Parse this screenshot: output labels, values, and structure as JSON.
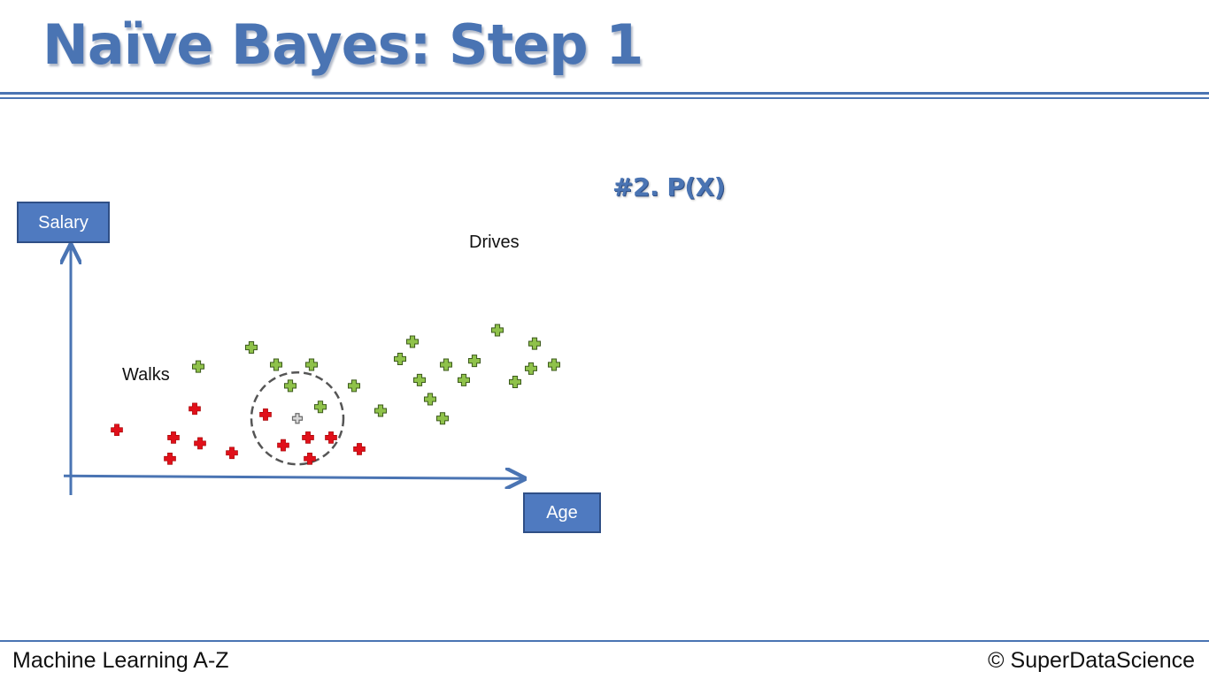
{
  "slide": {
    "title": "Naïve Bayes: Step 1",
    "step_label": "#2. P(X)"
  },
  "footer": {
    "course": "Machine Learning A-Z",
    "copyright": "© SuperDataScience"
  },
  "colors": {
    "accent": "#4a74b3",
    "walks": "#e0101a",
    "drives": "#8fc24a",
    "new_point": "#9a9a9a",
    "circle": "#555555"
  },
  "chart_data": {
    "type": "scatter",
    "xlabel": "Age",
    "ylabel": "Salary",
    "axis_ticks": false,
    "grid": false,
    "annotations": {
      "walks": "Walks",
      "drives": "Drives"
    },
    "series": [
      {
        "name": "Walks",
        "marker": "plus",
        "color": "#e0101a",
        "points": [
          [
            2.6,
            2.4
          ],
          [
            7.0,
            3.5
          ],
          [
            7.3,
            1.7
          ],
          [
            5.8,
            2.0
          ],
          [
            9.1,
            1.2
          ],
          [
            12.0,
            1.6
          ],
          [
            11.0,
            3.2
          ],
          [
            13.4,
            2.0
          ],
          [
            14.7,
            2.0
          ],
          [
            16.3,
            1.4
          ],
          [
            13.5,
            0.9
          ],
          [
            5.6,
            0.9
          ]
        ]
      },
      {
        "name": "Drives",
        "marker": "plus",
        "color": "#8fc24a",
        "points": [
          [
            7.2,
            5.7
          ],
          [
            10.2,
            6.7
          ],
          [
            11.6,
            5.8
          ],
          [
            13.6,
            5.8
          ],
          [
            12.4,
            4.7
          ],
          [
            14.1,
            3.6
          ],
          [
            16.0,
            4.7
          ],
          [
            17.5,
            3.4
          ],
          [
            18.6,
            6.1
          ],
          [
            19.3,
            7.0
          ],
          [
            19.7,
            5.0
          ],
          [
            21.2,
            5.8
          ],
          [
            22.8,
            6.0
          ],
          [
            22.2,
            5.0
          ],
          [
            21.0,
            3.0
          ],
          [
            20.3,
            4.0
          ],
          [
            24.1,
            7.6
          ],
          [
            25.1,
            4.9
          ],
          [
            26.2,
            6.9
          ],
          [
            26.0,
            5.6
          ],
          [
            27.3,
            5.8
          ]
        ]
      },
      {
        "name": "",
        "marker": "plus",
        "color": "#9a9a9a",
        "points": [
          [
            12.8,
            3.0
          ]
        ]
      }
    ],
    "radius_circle": {
      "center": [
        12.8,
        3.0
      ],
      "radius": 2.6
    },
    "xlim": [
      -3,
      31
    ],
    "ylim": [
      -1,
      12
    ]
  }
}
